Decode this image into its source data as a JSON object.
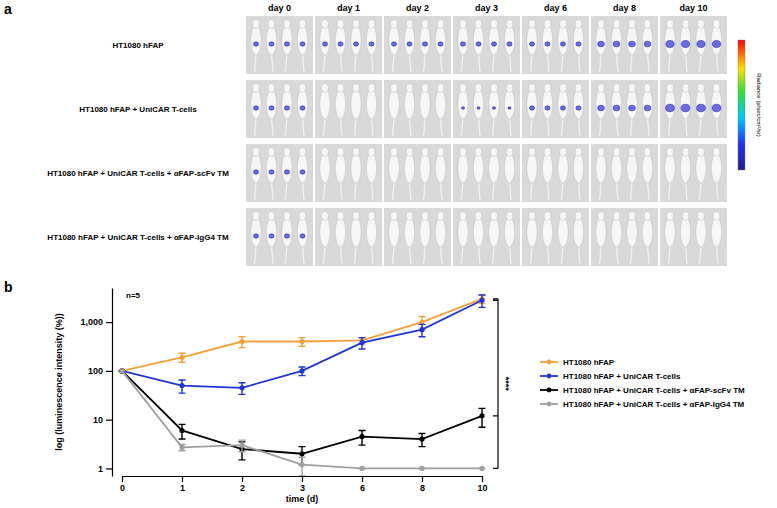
{
  "figure": {
    "panel_a": {
      "label": "a",
      "days": [
        "day 0",
        "day 1",
        "day 2",
        "day 3",
        "day 6",
        "day 8",
        "day 10"
      ],
      "groups": [
        "HT1080 hFAP",
        "HT1080 hFAP + UniCAR T-cells",
        "HT1080 hFAP + UniCAR T-cells + αFAP-scFv TM",
        "HT1080 hFAP + UniCAR T-cells + αFAP-IgG4 TM"
      ],
      "colorbar_label": "Radiance (p/sec/cm²/sr)"
    },
    "panel_b_label": "b"
  },
  "chart_data": {
    "type": "line",
    "x_label": "time (d)",
    "y_label": "log (luminescence intensity (%))",
    "categories": [
      "0",
      "1",
      "2",
      "3",
      "6",
      "8",
      "10"
    ],
    "log": "y",
    "ylim": [
      0.7,
      5000
    ],
    "yticks": [
      1,
      10,
      100,
      {
        "value": 1000,
        "label": "1,000"
      }
    ],
    "legend": "right",
    "annotations": [
      "n=5",
      "****"
    ],
    "series": [
      {
        "name": "HT1080 hFAP",
        "color": "#f5a03c",
        "marker": "circle",
        "values": [
          100,
          190,
          400,
          400,
          420,
          1000,
          3000
        ],
        "errors": [
          0,
          40,
          100,
          80,
          60,
          300,
          600
        ]
      },
      {
        "name": "HT1080 hFAP + UniCAR T-cells",
        "color": "#1f36d6",
        "marker": "circle",
        "values": [
          100,
          50,
          45,
          100,
          380,
          700,
          2800
        ],
        "errors": [
          0,
          15,
          12,
          20,
          100,
          200,
          800
        ]
      },
      {
        "name": "HT1080 hFAP + UniCAR T-cells + αFAP-scFv TM",
        "color": "#000000",
        "marker": "circle",
        "values": [
          100,
          6,
          2.5,
          2,
          4.5,
          4,
          12
        ],
        "errors": [
          0,
          2,
          1,
          0.8,
          1.5,
          1.2,
          5
        ]
      },
      {
        "name": "HT1080 hFAP + UniCAR T-cells + αFAP-IgG4 TM",
        "color": "#a0a0a0",
        "marker": "circle",
        "values": [
          100,
          2.7,
          3,
          1.2,
          1,
          1,
          1
        ],
        "errors": [
          0,
          0.4,
          0.8,
          0.5,
          0,
          0,
          0
        ]
      }
    ]
  }
}
